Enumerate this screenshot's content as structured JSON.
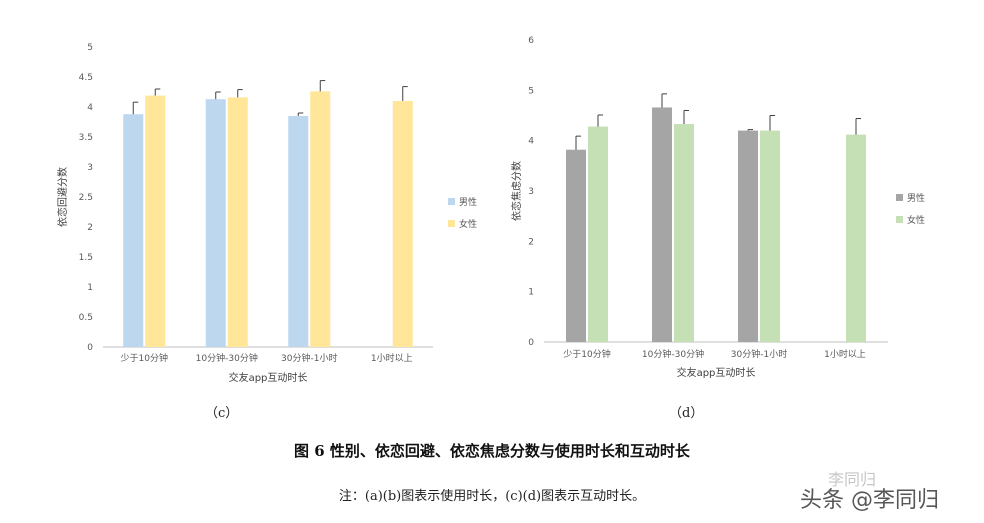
{
  "chart_data": [
    {
      "id": "c",
      "type": "bar",
      "title": "",
      "xlabel": "交友app互动时长",
      "ylabel": "依恋回避分数",
      "ylim": [
        0,
        5
      ],
      "yticks": [
        "0",
        "0.5",
        "1",
        "1.5",
        "2",
        "2.5",
        "3",
        "3.5",
        "4",
        "4.5",
        "5"
      ],
      "categories": [
        "少于10分钟",
        "10分钟-30分钟",
        "30分钟-1小时",
        "1小时以上"
      ],
      "series": [
        {
          "name": "男性",
          "color": "#bdd7ee",
          "values": [
            3.88,
            4.13,
            3.85,
            null
          ],
          "errors": [
            0.2,
            0.12,
            0.05,
            null
          ]
        },
        {
          "name": "女性",
          "color": "#ffe699",
          "values": [
            4.19,
            4.16,
            4.26,
            4.1
          ],
          "errors": [
            0.11,
            0.13,
            0.18,
            0.24
          ]
        }
      ],
      "legend": "right",
      "grid": false
    },
    {
      "id": "d",
      "type": "bar",
      "title": "",
      "xlabel": "交友app互动时长",
      "ylabel": "依恋焦虑分数",
      "ylim": [
        0,
        6
      ],
      "yticks": [
        "0",
        "1",
        "2",
        "3",
        "4",
        "5",
        "6"
      ],
      "categories": [
        "少于10分钟",
        "10分钟-30分钟",
        "30分钟-1小时",
        "1小时以上"
      ],
      "series": [
        {
          "name": "男性",
          "color": "#a5a5a5",
          "values": [
            3.82,
            4.66,
            4.2,
            null
          ],
          "errors": [
            0.27,
            0.27,
            0.02,
            null
          ]
        },
        {
          "name": "女性",
          "color": "#c5e0b4",
          "values": [
            4.28,
            4.33,
            4.2,
            4.12
          ],
          "errors": [
            0.23,
            0.27,
            0.3,
            0.32
          ]
        }
      ],
      "legend": "right",
      "grid": false
    }
  ],
  "panel_labels": {
    "c": "（c）",
    "d": "（d）"
  },
  "caption": "图 6  性别、依恋回避、依恋焦虑分数与使用时长和互动时长",
  "note": "注：(a)(b)图表示使用时长，(c)(d)图表示互动时长。",
  "watermark": {
    "logo_text": "李同归",
    "main_text": "头条 @李同归"
  }
}
